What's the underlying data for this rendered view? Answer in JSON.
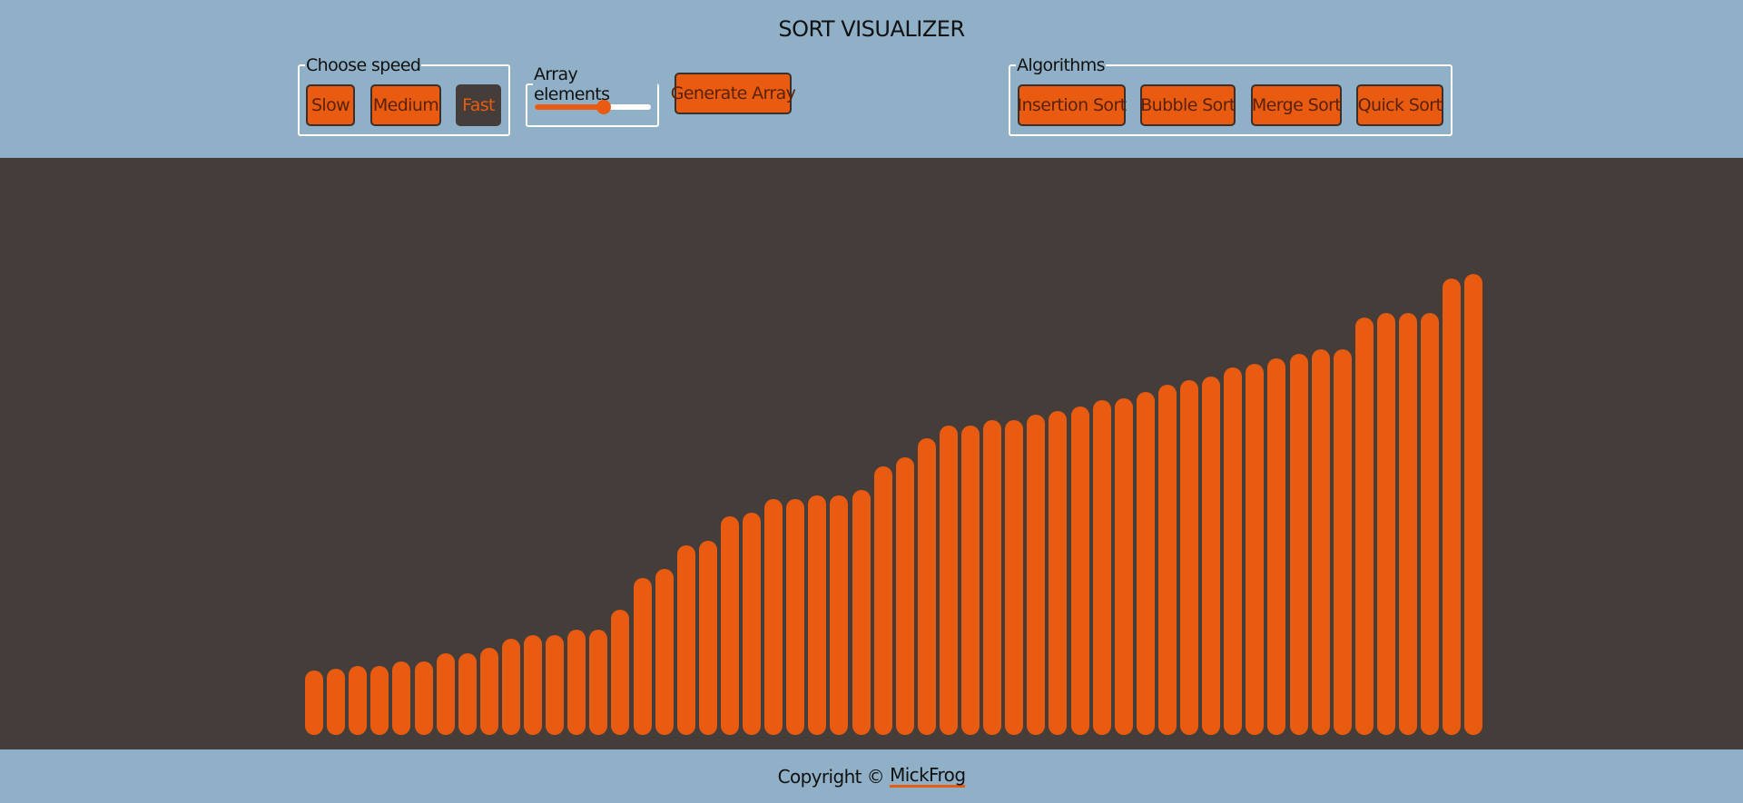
{
  "header": {
    "title": "SORT VISUALIZER",
    "speed": {
      "legend": "Choose speed",
      "options": [
        "Slow",
        "Medium",
        "Fast"
      ],
      "selected": "Fast"
    },
    "array_size": {
      "legend": "Array elements",
      "value_fraction": 0.59
    },
    "generate_label": "Generate Array",
    "algorithms": {
      "legend": "Algorithms",
      "options": [
        "Insertion Sort",
        "Bubble Sort",
        "Merge Sort",
        "Quick Sort"
      ]
    }
  },
  "array_values": [
    68,
    70,
    73,
    73,
    78,
    78,
    87,
    87,
    92,
    102,
    106,
    106,
    112,
    112,
    133,
    166,
    176,
    201,
    206,
    232,
    236,
    250,
    250,
    254,
    254,
    260,
    285,
    294,
    314,
    328,
    328,
    334,
    334,
    339,
    343,
    348,
    355,
    357,
    363,
    371,
    376,
    380,
    389,
    393,
    399,
    404,
    409,
    409,
    442,
    447,
    447,
    447,
    484,
    488
  ],
  "colors": {
    "header_bg": "#8fb0c6",
    "stage_bg": "#453d3a",
    "accent": "#e85b10"
  },
  "footer": {
    "text": "Copyright ©",
    "author": "MickFrog"
  }
}
